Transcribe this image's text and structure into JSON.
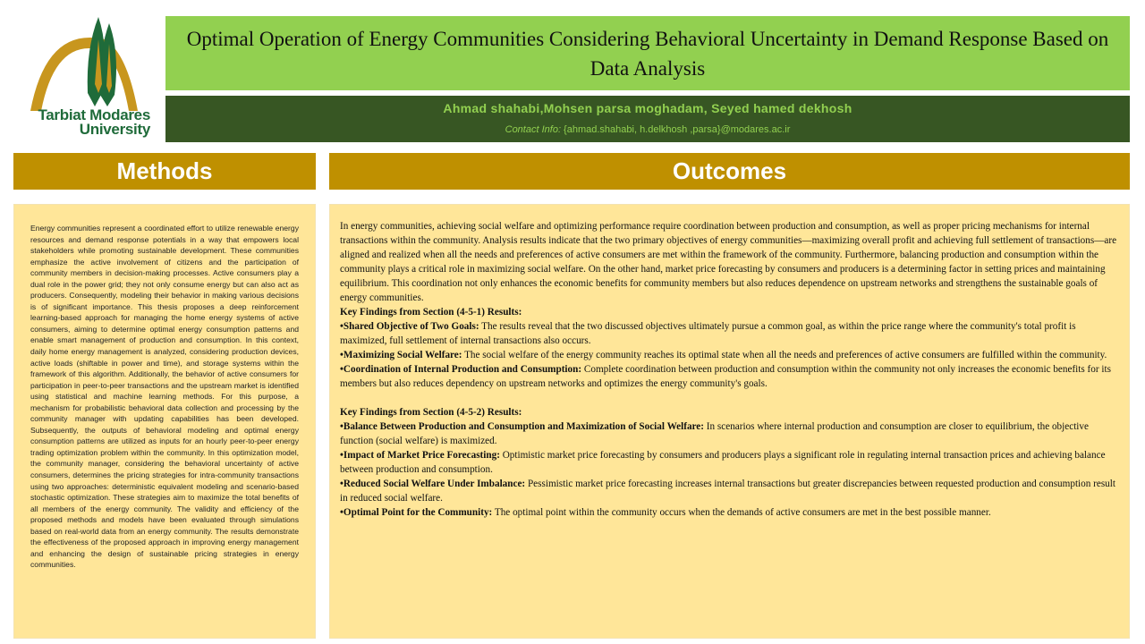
{
  "logo": {
    "line1": "Tarbiat Modares",
    "line2": "University"
  },
  "header": {
    "title": "Optimal Operation of Energy Communities Considering Behavioral Uncertainty in Demand Response Based on Data Analysis",
    "authors": "Ahmad shahabi,Mohsen parsa moghadam, Seyed hamed dekhosh",
    "contact_label": "Contact Info:",
    "contact_value": " {ahmad.shahabi, h.delkhosh ,parsa}@modares.ac.ir"
  },
  "methods": {
    "heading": "Methods",
    "body": "Energy communities represent a coordinated effort to utilize renewable energy resources and demand response potentials in a way that empowers local stakeholders while promoting sustainable development. These communities emphasize the active involvement of citizens and the participation of community members in decision-making processes. Active consumers play a dual role in the power grid; they not only consume energy but can also act as producers. Consequently, modeling their behavior in making various decisions is of significant importance. This thesis proposes a deep reinforcement learning-based approach for managing the home energy systems of active consumers, aiming to determine optimal energy consumption patterns and enable smart management of production and consumption. In this context, daily home energy management is analyzed, considering production devices, active loads (shiftable in power and time), and storage systems within the framework of this algorithm. Additionally, the behavior of active consumers for participation in peer-to-peer transactions and the upstream market is identified using statistical and machine learning methods. For this purpose, a mechanism for probabilistic behavioral data collection and processing by the community manager with updating capabilities has been developed. Subsequently, the outputs of behavioral modeling and optimal energy consumption patterns are utilized as inputs for an hourly peer-to-peer energy trading optimization problem within the community. In this optimization model, the community manager, considering the behavioral uncertainty of active consumers, determines the pricing strategies for intra-community transactions using two approaches: deterministic equivalent modeling and scenario-based stochastic optimization. These strategies aim to maximize the total benefits of all members of the energy community. The validity and efficiency of the proposed methods and models have been evaluated through simulations based on real-world data from an energy community. The results demonstrate the effectiveness of the proposed approach in improving energy management and enhancing the design of sustainable pricing strategies in energy communities."
  },
  "outcomes": {
    "heading": "Outcomes",
    "intro": "In energy communities, achieving social welfare and optimizing performance require coordination between production and consumption, as well as proper pricing mechanisms for internal transactions within the community. Analysis results indicate that the two primary objectives of energy communities—maximizing overall profit and achieving full settlement of transactions—are aligned and realized when all the needs and preferences of active consumers are met within the framework of the community. Furthermore, balancing production and consumption within the community plays a critical role in maximizing social welfare. On the other hand, market price forecasting by consumers and producers is a determining factor in setting prices and maintaining equilibrium. This coordination not only enhances the economic benefits for community members but also reduces dependence on upstream networks and strengthens the sustainable goals of energy communities.",
    "section1": {
      "heading": "Key Findings from Section (4-5-1) Results:",
      "items": [
        {
          "title": "•Shared Objective of Two Goals:",
          "text": " The results reveal that the two discussed objectives ultimately pursue a common goal, as within the price range where the community's total profit is maximized, full settlement of internal transactions also occurs."
        },
        {
          "title": "•Maximizing Social Welfare:",
          "text": " The social welfare of the energy community reaches its optimal state when all the needs and preferences of active consumers are fulfilled within the community."
        },
        {
          "title": "•Coordination of Internal Production and Consumption:",
          "text": " Complete coordination between production and consumption within the community not only increases the economic benefits for its members but also reduces dependency on upstream networks and optimizes the energy community's goals."
        }
      ]
    },
    "section2": {
      "heading": "Key Findings from Section (4-5-2) Results:",
      "items": [
        {
          "title": "•Balance Between Production and Consumption and Maximization of Social Welfare:",
          "text": " In scenarios where internal production and consumption are closer to equilibrium, the objective function (social welfare) is maximized."
        },
        {
          "title": "•Impact of Market Price Forecasting:",
          "text": " Optimistic market price forecasting by consumers and producers plays a significant role in regulating internal transaction prices and achieving balance between production and consumption."
        },
        {
          "title": "•Reduced Social Welfare Under Imbalance:",
          "text": " Pessimistic market price forecasting increases internal transactions but greater discrepancies between requested production and consumption result in reduced social welfare."
        },
        {
          "title": "•Optimal Point for the Community:",
          "text": " The optimal point within the community occurs when the demands of active consumers are met in the best possible manner."
        }
      ]
    }
  },
  "colors": {
    "title_bg": "#92d050",
    "author_bg": "#375623",
    "section_header": "#bf9000",
    "panel_bg": "#ffe699",
    "logo_green": "#1f6b3a",
    "logo_gold": "#c8961e"
  }
}
